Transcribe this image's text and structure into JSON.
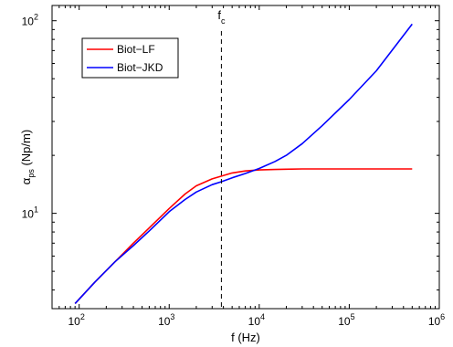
{
  "chart_data": {
    "type": "line",
    "x_scale": "log",
    "y_scale": "log",
    "xlim": [
      50,
      1000000
    ],
    "ylim": [
      3.2,
      120
    ],
    "xlabel": "f (Hz)",
    "ylabel_main": "α",
    "ylabel_sub": "ps",
    "ylabel_unit": " (Np/m)",
    "x_ticks": [
      {
        "value": 100,
        "base": "10",
        "exp": "2"
      },
      {
        "value": 1000,
        "base": "10",
        "exp": "3"
      },
      {
        "value": 10000,
        "base": "10",
        "exp": "4"
      },
      {
        "value": 100000,
        "base": "10",
        "exp": "5"
      },
      {
        "value": 1000000,
        "base": "10",
        "exp": "6"
      }
    ],
    "y_ticks": [
      {
        "value": 10,
        "base": "10",
        "exp": "1"
      },
      {
        "value": 100,
        "base": "10",
        "exp": "2"
      }
    ],
    "grid": false,
    "legend_position": "top-left",
    "annotation": {
      "x": 3800,
      "label": "f",
      "sub": "c",
      "style": "dashed"
    },
    "series": [
      {
        "name": "Biot−LF",
        "color": "#ff0000",
        "x": [
          90,
          150,
          250,
          400,
          600,
          1000,
          1500,
          2000,
          3000,
          3800,
          5000,
          7000,
          10000,
          15000,
          20000,
          30000,
          50000,
          100000,
          200000,
          500000
        ],
        "y": [
          3.4,
          4.4,
          5.6,
          7.0,
          8.4,
          10.6,
          12.6,
          13.9,
          15.1,
          15.6,
          16.2,
          16.6,
          16.8,
          16.9,
          16.95,
          17.0,
          17.0,
          17.0,
          17.0,
          17.0
        ]
      },
      {
        "name": "Biot−JKD",
        "color": "#0000ff",
        "x": [
          90,
          150,
          250,
          400,
          600,
          1000,
          1500,
          2000,
          3000,
          3800,
          5000,
          7000,
          10000,
          15000,
          20000,
          30000,
          50000,
          100000,
          200000,
          500000
        ],
        "y": [
          3.4,
          4.4,
          5.6,
          6.8,
          8.1,
          10.2,
          11.8,
          12.9,
          14.1,
          14.6,
          15.3,
          16.1,
          17.1,
          18.6,
          20.0,
          23.0,
          28.5,
          39.0,
          55.0,
          96.0
        ]
      }
    ]
  }
}
